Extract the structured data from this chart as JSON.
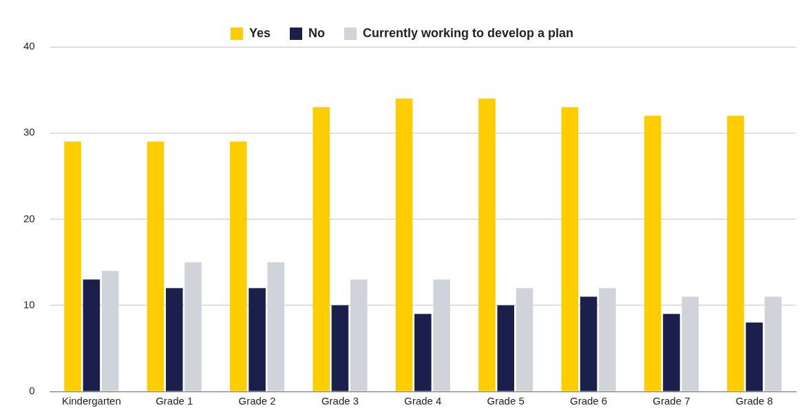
{
  "chart_data": {
    "type": "bar",
    "categories": [
      "Kindergarten",
      "Grade 1",
      "Grade 2",
      "Grade 3",
      "Grade 4",
      "Grade 5",
      "Grade 6",
      "Grade 7",
      "Grade 8"
    ],
    "series": [
      {
        "name": "Yes",
        "color": "#fecd00",
        "values": [
          29,
          29,
          29,
          33,
          34,
          34,
          33,
          32,
          32
        ]
      },
      {
        "name": "No",
        "color": "#1a1f4b",
        "values": [
          13,
          12,
          12,
          10,
          9,
          10,
          11,
          9,
          8
        ]
      },
      {
        "name": "Currently working to develop a plan",
        "color": "#d0d3da",
        "values": [
          14,
          15,
          15,
          13,
          13,
          12,
          12,
          11,
          11
        ]
      }
    ],
    "ylim": [
      0,
      40
    ],
    "yticks": [
      0,
      10,
      20,
      30,
      40
    ],
    "grid": "y",
    "legend": "top"
  }
}
